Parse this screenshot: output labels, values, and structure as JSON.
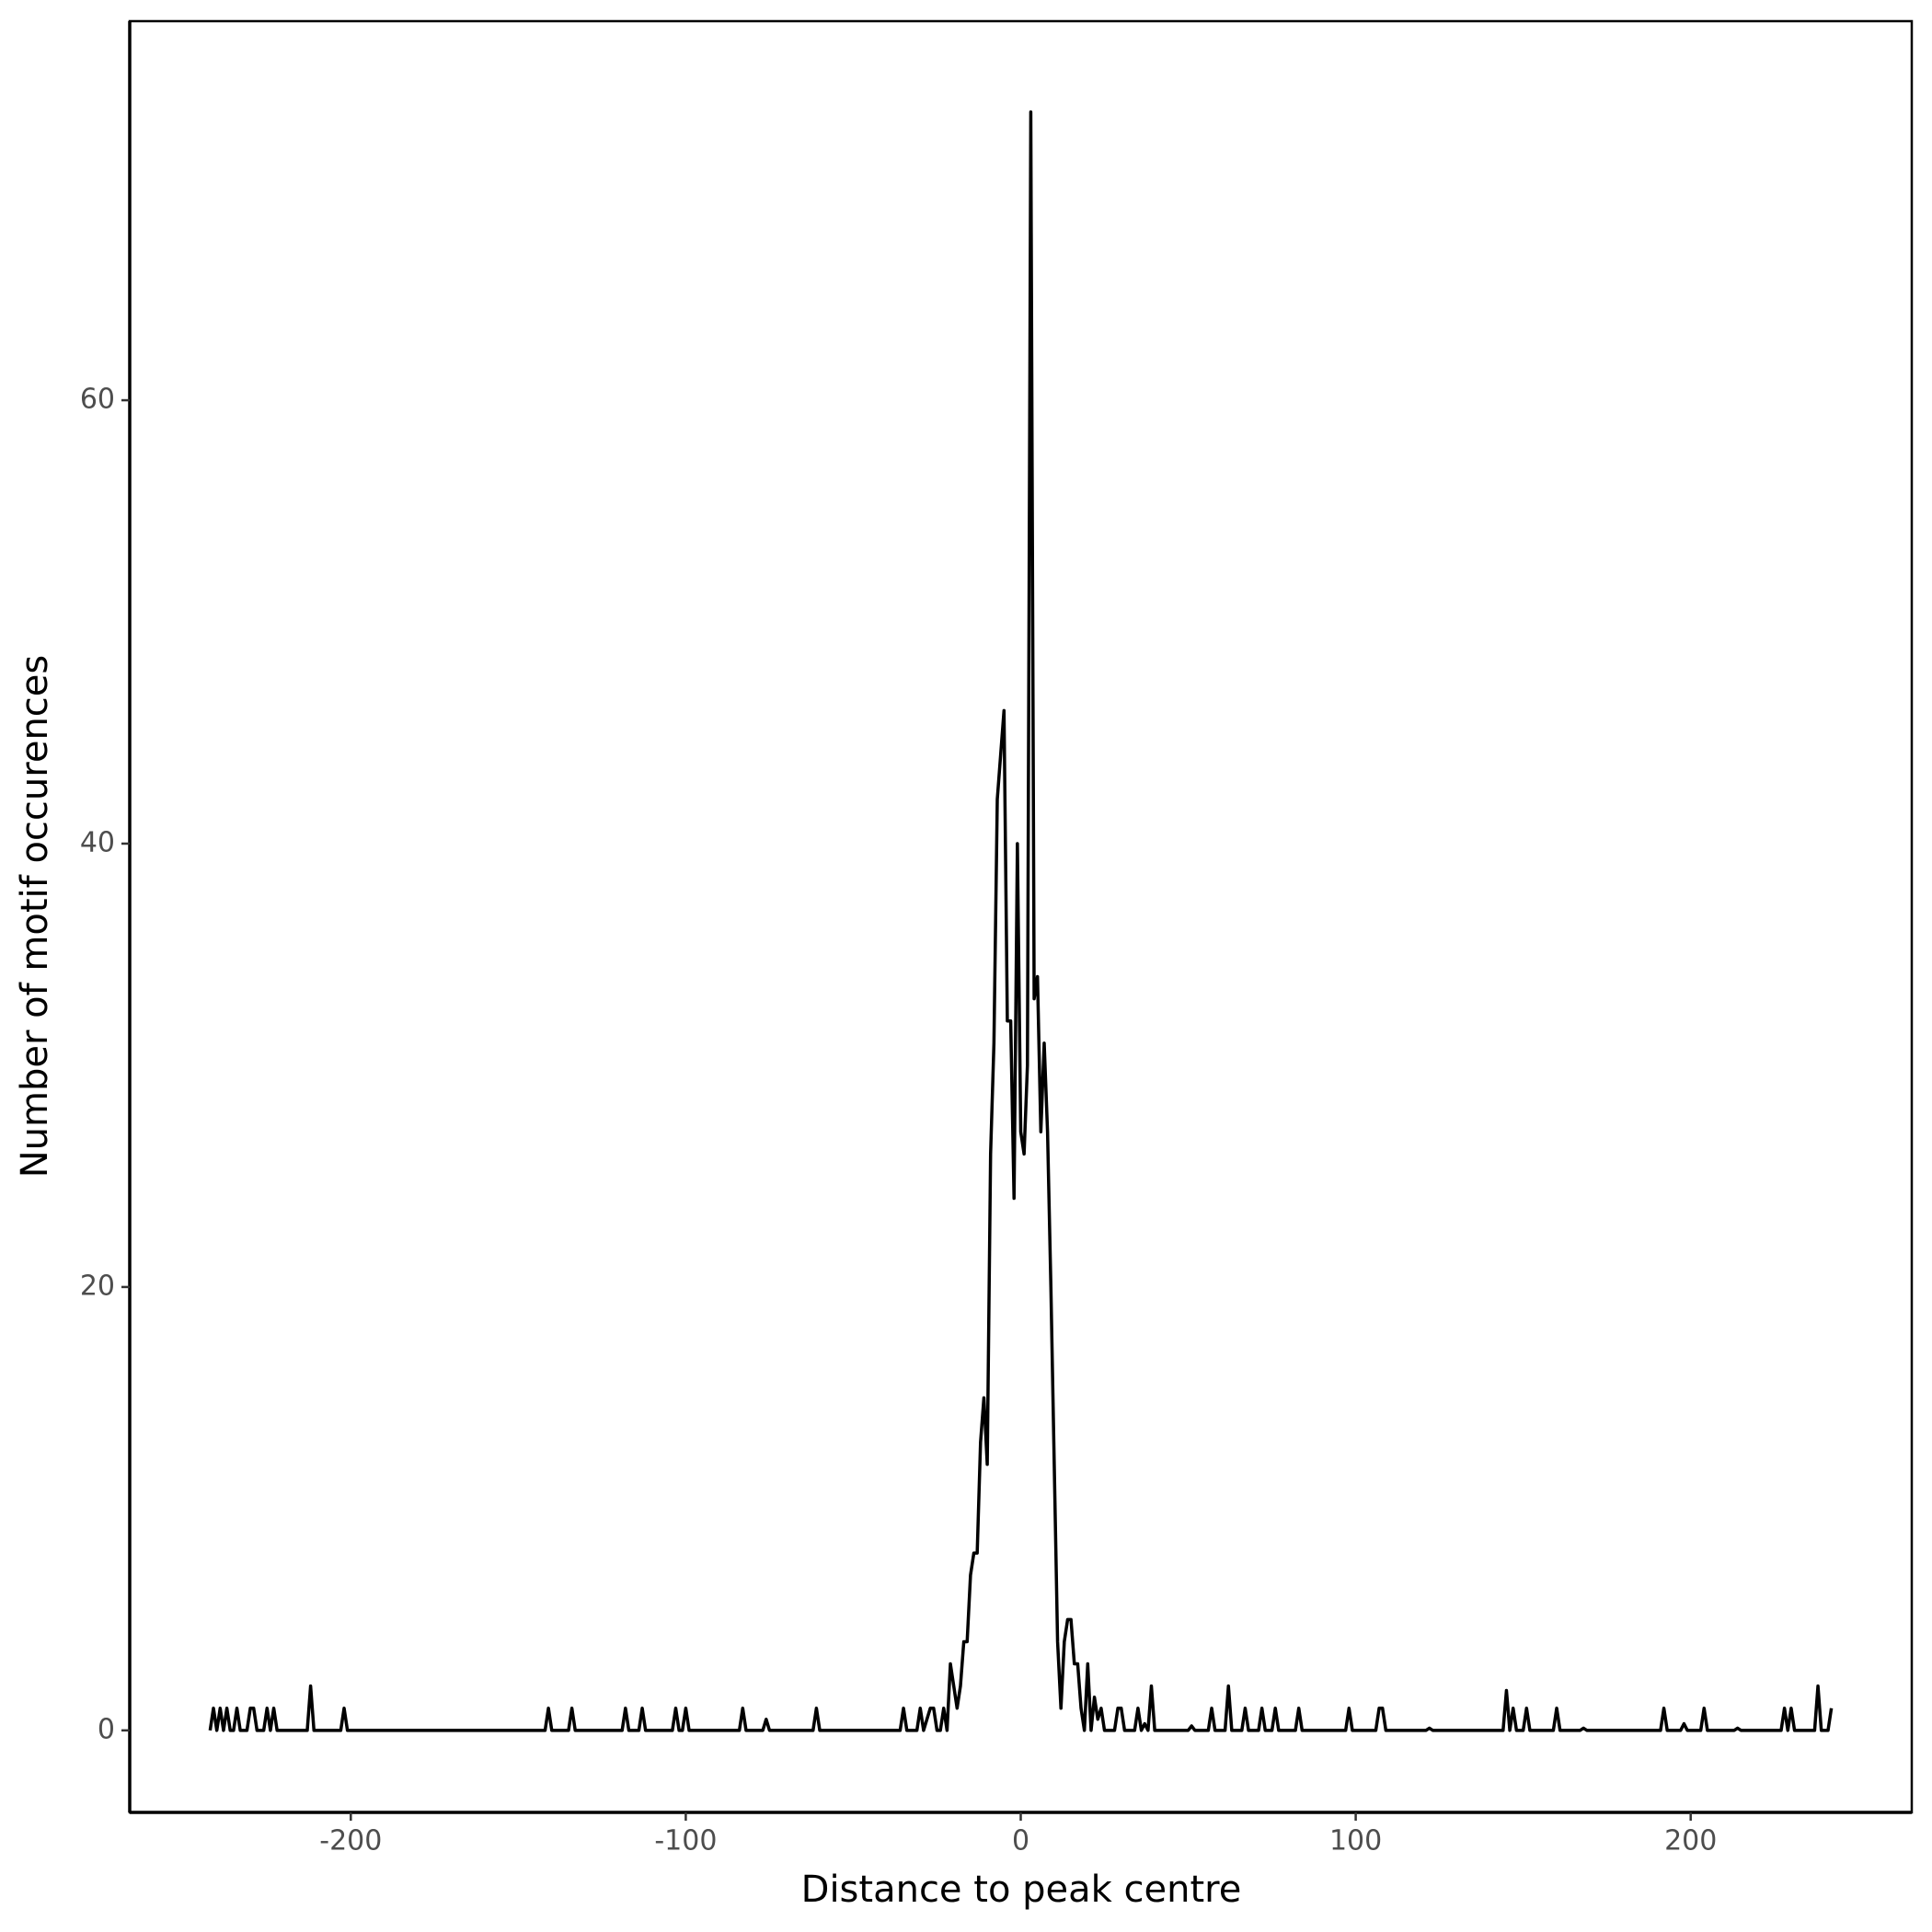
{
  "chart_data": {
    "type": "line",
    "xlabel": "Distance to peak centre",
    "ylabel": "Number of motif occurences",
    "color": "#000000",
    "x": [
      -242,
      -241,
      -240,
      -239,
      -238,
      -237,
      -236,
      -235,
      -234,
      -233,
      -231,
      -230,
      -229,
      -228,
      -226,
      -225,
      -224,
      -223,
      -222,
      -213,
      -212,
      -211,
      -203,
      -202,
      -201,
      -142,
      -141,
      -140,
      -135,
      -134,
      -133,
      -119,
      -118,
      -117,
      -114,
      -113,
      -112,
      -104,
      -103,
      -102,
      -101,
      -100,
      -99,
      -84,
      -83,
      -82,
      -77,
      -76,
      -75,
      -62,
      -61,
      -60,
      -36,
      -35,
      -34,
      -31,
      -30,
      -29,
      -28,
      -27,
      -26,
      -25,
      -24,
      -23,
      -22,
      -21,
      -20,
      -19,
      -18,
      -17,
      -16,
      -15,
      -14,
      -13,
      -12,
      -11,
      -10,
      -9,
      -8,
      -7,
      -6,
      -5,
      -4,
      -3,
      -2,
      -1,
      0,
      1,
      2,
      3,
      4,
      5,
      6,
      7,
      8,
      9,
      10,
      11,
      12,
      13,
      14,
      15,
      16,
      17,
      18,
      19,
      20,
      21,
      22,
      23,
      24,
      25,
      28,
      29,
      30,
      31,
      34,
      35,
      36,
      37,
      38,
      39,
      40,
      50,
      51,
      52,
      56,
      57,
      58,
      61,
      62,
      63,
      66,
      67,
      68,
      71,
      72,
      73,
      75,
      76,
      77,
      82,
      83,
      84,
      97,
      98,
      99,
      106,
      107,
      108,
      109,
      121,
      122,
      123,
      144,
      145,
      146,
      147,
      148,
      150,
      151,
      152,
      159,
      160,
      161,
      167,
      168,
      169,
      191,
      192,
      193,
      197,
      198,
      199,
      203,
      204,
      205,
      213,
      214,
      215,
      227,
      228,
      229,
      230,
      231,
      236,
      237,
      238,
      239,
      241,
      242
    ],
    "values": [
      0,
      1,
      0,
      1,
      0,
      1,
      0,
      0,
      1,
      0,
      0,
      1,
      1,
      0,
      0,
      1,
      0,
      1,
      0,
      0,
      2,
      0,
      0,
      1,
      0,
      0,
      1,
      0,
      0,
      1,
      0,
      0,
      1,
      0,
      0,
      1,
      0,
      0,
      1,
      0,
      0,
      1,
      0,
      0,
      1,
      0,
      0,
      0.5,
      0,
      0,
      1,
      0,
      0,
      1,
      0,
      0,
      1,
      0,
      0.5,
      1,
      1,
      0,
      0,
      1,
      0,
      3,
      2,
      1,
      2,
      4,
      4,
      7,
      8,
      8,
      13,
      15,
      12,
      26,
      31,
      42,
      44,
      46,
      32,
      32,
      24,
      40,
      27,
      26,
      30,
      73,
      33,
      34,
      27,
      31,
      27,
      20,
      12,
      4,
      1,
      4,
      5,
      5,
      3,
      3,
      1,
      0,
      3,
      0,
      1.5,
      0.5,
      1,
      0,
      0,
      1,
      1,
      0,
      0,
      1,
      0,
      0.3,
      0,
      2,
      0,
      0,
      0.2,
      0,
      0,
      1,
      0,
      0,
      2,
      0,
      0,
      1,
      0,
      0,
      1,
      0,
      0,
      1,
      0,
      0,
      1,
      0,
      0,
      1,
      0,
      0,
      1,
      1,
      0,
      0,
      0.1,
      0,
      0,
      1.8,
      0,
      1,
      0,
      0,
      1,
      0,
      0,
      1,
      0,
      0,
      0.1,
      0,
      0,
      1,
      0,
      0,
      0.3,
      0,
      0,
      1,
      0,
      0,
      0.1,
      0,
      0,
      1,
      0,
      1,
      0,
      0,
      0,
      2,
      0,
      0,
      1
    ],
    "xlim": [
      -266,
      266
    ],
    "ylim": [
      -3.7,
      77.1
    ],
    "xticks": [
      -200,
      -100,
      0,
      100,
      200
    ],
    "yticks": [
      0,
      20,
      40,
      60
    ]
  }
}
